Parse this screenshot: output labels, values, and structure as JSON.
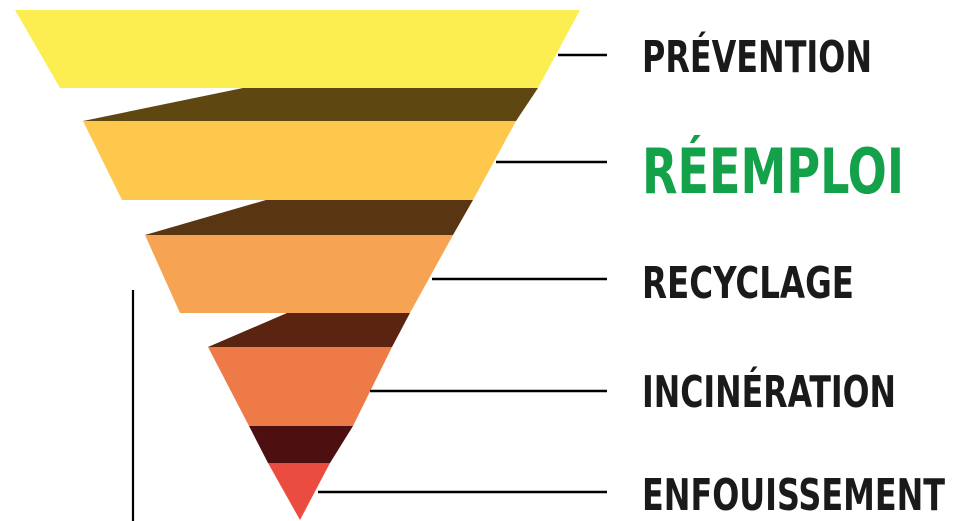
{
  "levels": [
    {
      "label": "PRÉVENTION",
      "face_color": "#fcee50",
      "shadow_color": "#5e4711",
      "label_color": "#1a1a1a"
    },
    {
      "label": "RÉEMPLOI",
      "face_color": "#fdc84c",
      "shadow_color": "#5a3512",
      "label_color": "#13a24a"
    },
    {
      "label": "RECYCLAGE",
      "face_color": "#f6a453",
      "shadow_color": "#5a2411",
      "label_color": "#1a1a1a"
    },
    {
      "label": "INCINÉRATION",
      "face_color": "#ee7a48",
      "shadow_color": "#4e0f10",
      "label_color": "#1a1a1a"
    },
    {
      "label": "ENFOUISSEMENT",
      "face_color": "#ea4d3f",
      "shadow_color": "",
      "label_color": "#1a1a1a"
    }
  ]
}
